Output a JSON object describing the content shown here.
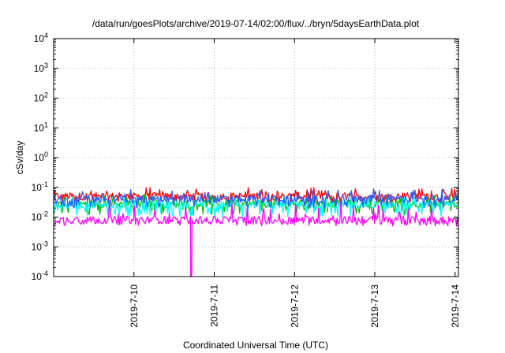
{
  "chart_data": {
    "type": "line",
    "title": "/data/run/goesPlots/archive/2019-07-14/02:00/flux/../bryn/5daysEarthData.plot",
    "xlabel": "Coordinated Universal Time (UTC)",
    "ylabel": "cSv/day",
    "yscale": "log",
    "ylim": [
      0.0001,
      10000
    ],
    "xlim": [
      "2019-07-09T00:00",
      "2019-07-14T01:00"
    ],
    "grid": true,
    "y_ticks": [
      {
        "value": 0.0001,
        "base": "10",
        "exp": "-4"
      },
      {
        "value": 0.001,
        "base": "10",
        "exp": "-3"
      },
      {
        "value": 0.01,
        "base": "10",
        "exp": "-2"
      },
      {
        "value": 0.1,
        "base": "10",
        "exp": "-1"
      },
      {
        "value": 1,
        "base": "10",
        "exp": "0"
      },
      {
        "value": 10,
        "base": "10",
        "exp": "1"
      },
      {
        "value": 100,
        "base": "10",
        "exp": "2"
      },
      {
        "value": 1000,
        "base": "10",
        "exp": "3"
      },
      {
        "value": 10000,
        "base": "10",
        "exp": "4"
      }
    ],
    "x_ticks": [
      {
        "value": "2019-07-10",
        "label": "2019-7-10"
      },
      {
        "value": "2019-07-11",
        "label": "2019-7-11"
      },
      {
        "value": "2019-07-12",
        "label": "2019-7-12"
      },
      {
        "value": "2019-07-13",
        "label": "2019-7-13"
      },
      {
        "value": "2019-07-14",
        "label": "2019-7-14"
      }
    ],
    "series": [
      {
        "color": "#ff0000",
        "baseline": 0.05,
        "low": 0.03,
        "high": 0.1
      },
      {
        "color": "#00c000",
        "baseline": 0.028,
        "low": 0.012,
        "high": 0.06
      },
      {
        "color": "#00ffff",
        "baseline": 0.025,
        "low": 0.01,
        "high": 0.05
      },
      {
        "color": "#1e64ff",
        "baseline": 0.04,
        "low": 0.02,
        "high": 0.09
      },
      {
        "color": "#ff00ff",
        "baseline": 0.008,
        "low": 0.005,
        "high": 0.04,
        "dropout": {
          "x": "2019-07-10T17:00",
          "y": 0.0001
        }
      }
    ]
  }
}
